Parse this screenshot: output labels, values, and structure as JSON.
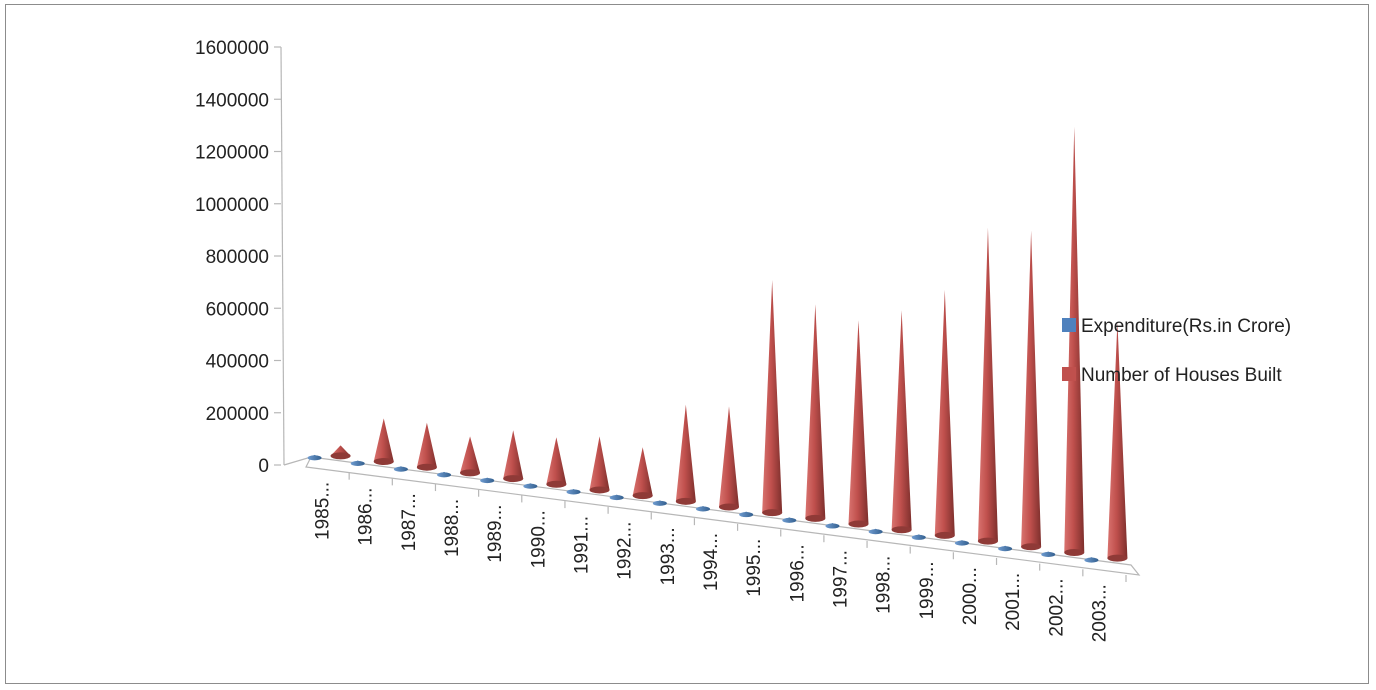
{
  "chart_data": {
    "type": "bar",
    "style": "3d-cone",
    "categories": [
      "1985...",
      "1986...",
      "1987...",
      "1988...",
      "1989...",
      "1990...",
      "1991...",
      "1992...",
      "1993...",
      "1994...",
      "1995...",
      "1996...",
      "1997...",
      "1998...",
      "1999...",
      "2000...",
      "2001...",
      "2002...",
      "2003..."
    ],
    "series": [
      {
        "name": "Expenditure(Rs.in Crore)",
        "color": "#4f81bd",
        "values": [
          1000,
          1000,
          1000,
          1000,
          1000,
          1000,
          1000,
          1000,
          1000,
          1000,
          1000,
          1000,
          1000,
          1000,
          1000,
          1000,
          1000,
          1000,
          1000
        ]
      },
      {
        "name": "Number of Houses Built",
        "color": "#c0504d",
        "values": [
          40000,
          165000,
          170000,
          140000,
          185000,
          180000,
          205000,
          185000,
          370000,
          385000,
          890000,
          820000,
          780000,
          840000,
          940000,
          1200000,
          1210000,
          1630000,
          905000
        ]
      }
    ],
    "yticks": [
      "0",
      "200000",
      "400000",
      "600000",
      "800000",
      "1000000",
      "1200000",
      "1400000",
      "1600000"
    ],
    "ylim": [
      0,
      1600000
    ],
    "legend_position": "right",
    "grid": false
  }
}
